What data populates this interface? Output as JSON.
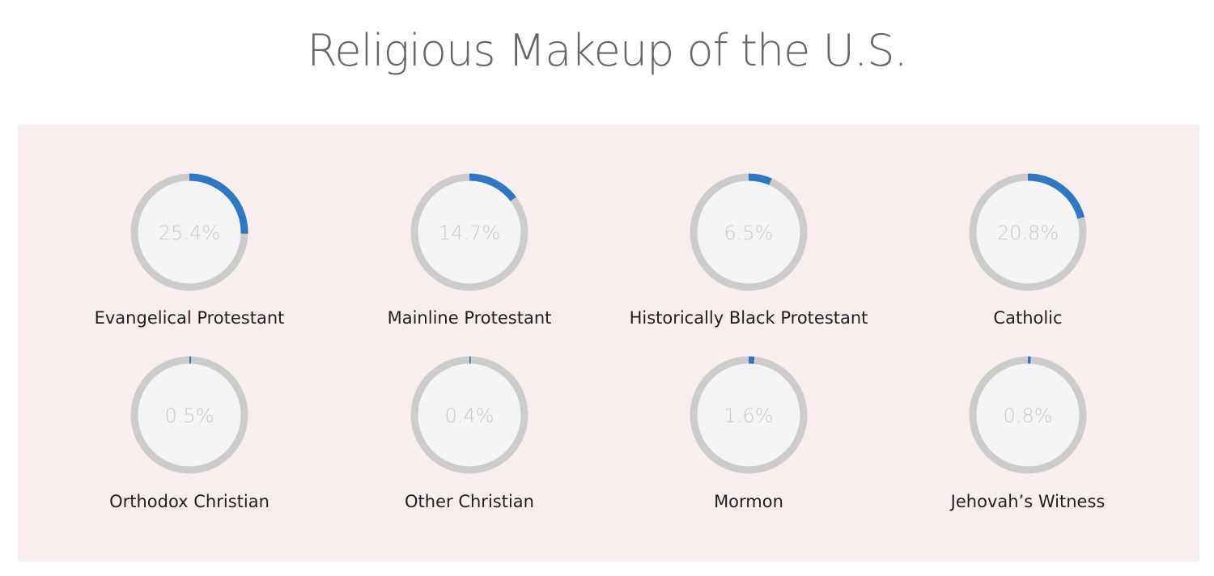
{
  "chart_data": {
    "type": "donut",
    "title": "Religious Makeup of the U.S.",
    "unit": "%",
    "colors": {
      "fill": "#2f78c1",
      "track": "#cccccc",
      "inner": "#f4f4f4",
      "panel": "#f8eeed"
    },
    "items": [
      {
        "label": "Evangelical Protestant",
        "value": 25.4,
        "display": "25.4%"
      },
      {
        "label": "Mainline Protestant",
        "value": 14.7,
        "display": "14.7%"
      },
      {
        "label": "Historically Black Protestant",
        "value": 6.5,
        "display": "6.5%"
      },
      {
        "label": "Catholic",
        "value": 20.8,
        "display": "20.8%"
      },
      {
        "label": "Orthodox Christian",
        "value": 0.5,
        "display": "0.5%"
      },
      {
        "label": "Other Christian",
        "value": 0.4,
        "display": "0.4%"
      },
      {
        "label": "Mormon",
        "value": 1.6,
        "display": "1.6%"
      },
      {
        "label": "Jehovah’s Witness",
        "value": 0.8,
        "display": "0.8%"
      }
    ]
  }
}
